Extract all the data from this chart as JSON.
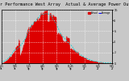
{
  "title": "Solar PV/Inverter Performance West Array  Actual & Average Power Output",
  "title_fontsize": 3.8,
  "bg_color": "#c8c8c8",
  "plot_bg_color": "#c8c8c8",
  "bar_color": "#dd0000",
  "avg_line_color": "#00cccc",
  "grid_color": "#ffffff",
  "legend_actual_color": "#dd0000",
  "legend_avg_color": "#0000ff",
  "n_points": 300,
  "ylim": [
    0,
    10
  ],
  "xlim": [
    0,
    300
  ],
  "y_ticks": [
    0,
    2,
    4,
    6,
    8,
    10
  ],
  "y_labels": [
    "0.",
    "2.",
    "4.",
    "6.",
    "8.",
    "10:"
  ],
  "x_tick_pos": [
    0,
    37,
    75,
    112,
    150,
    187,
    225,
    262,
    300
  ],
  "x_tick_labels": [
    "6:15\n9a",
    "9:45\n9a",
    "1:15\n9p",
    "4:45\n9p",
    "8:15\n9p",
    "11:45\n9p",
    "3:15\n27",
    "6:15\n27",
    "9:45\n27"
  ],
  "grid_x_pos": [
    0,
    37,
    75,
    112,
    150,
    187,
    225,
    262,
    300
  ],
  "grid_y_pos": [
    0,
    2,
    4,
    6,
    8,
    10
  ]
}
